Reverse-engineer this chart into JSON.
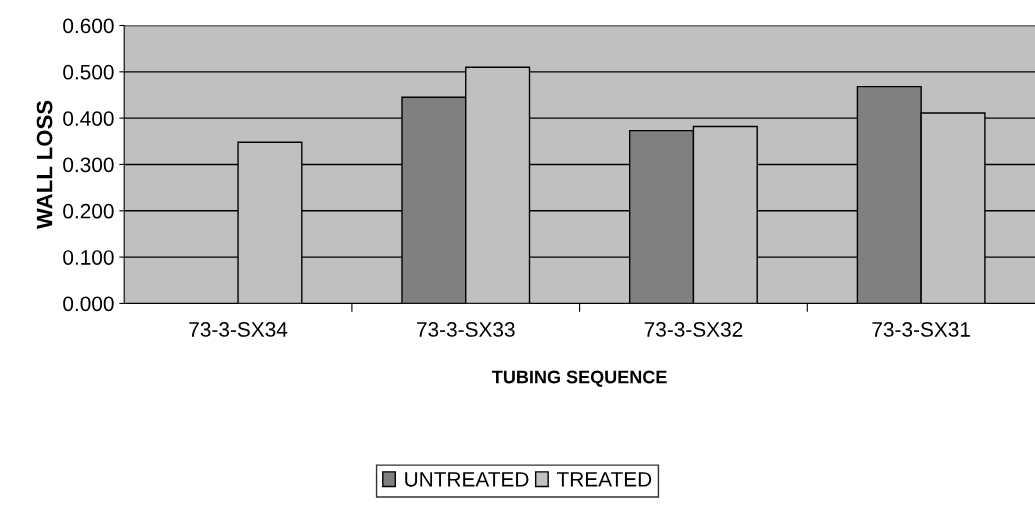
{
  "chart_data": {
    "type": "bar",
    "xlabel": "TUBING SEQUENCE",
    "ylabel": "WALL LOSS",
    "categories": [
      "73-3-SX34",
      "73-3-SX33",
      "73-3-SX32",
      "73-3-SX31"
    ],
    "series": [
      {
        "name": "UNTREATED",
        "color": "#808080",
        "values": [
          null,
          0.445,
          0.373,
          0.468
        ]
      },
      {
        "name": "TREATED",
        "color": "#c0c0c0",
        "values": [
          0.348,
          0.51,
          0.382,
          0.411
        ]
      }
    ],
    "ylim": [
      0,
      0.6
    ],
    "yticks": [
      {
        "value": 0,
        "label": "0.000"
      },
      {
        "value": 0.1,
        "label": "0.100"
      },
      {
        "value": 0.2,
        "label": "0.200"
      },
      {
        "value": 0.3,
        "label": "0.300"
      },
      {
        "value": 0.4,
        "label": "0.400"
      },
      {
        "value": 0.5,
        "label": "0.500"
      },
      {
        "value": 0.6,
        "label": "0.600"
      }
    ],
    "grid": "y",
    "legend": "bottom"
  }
}
